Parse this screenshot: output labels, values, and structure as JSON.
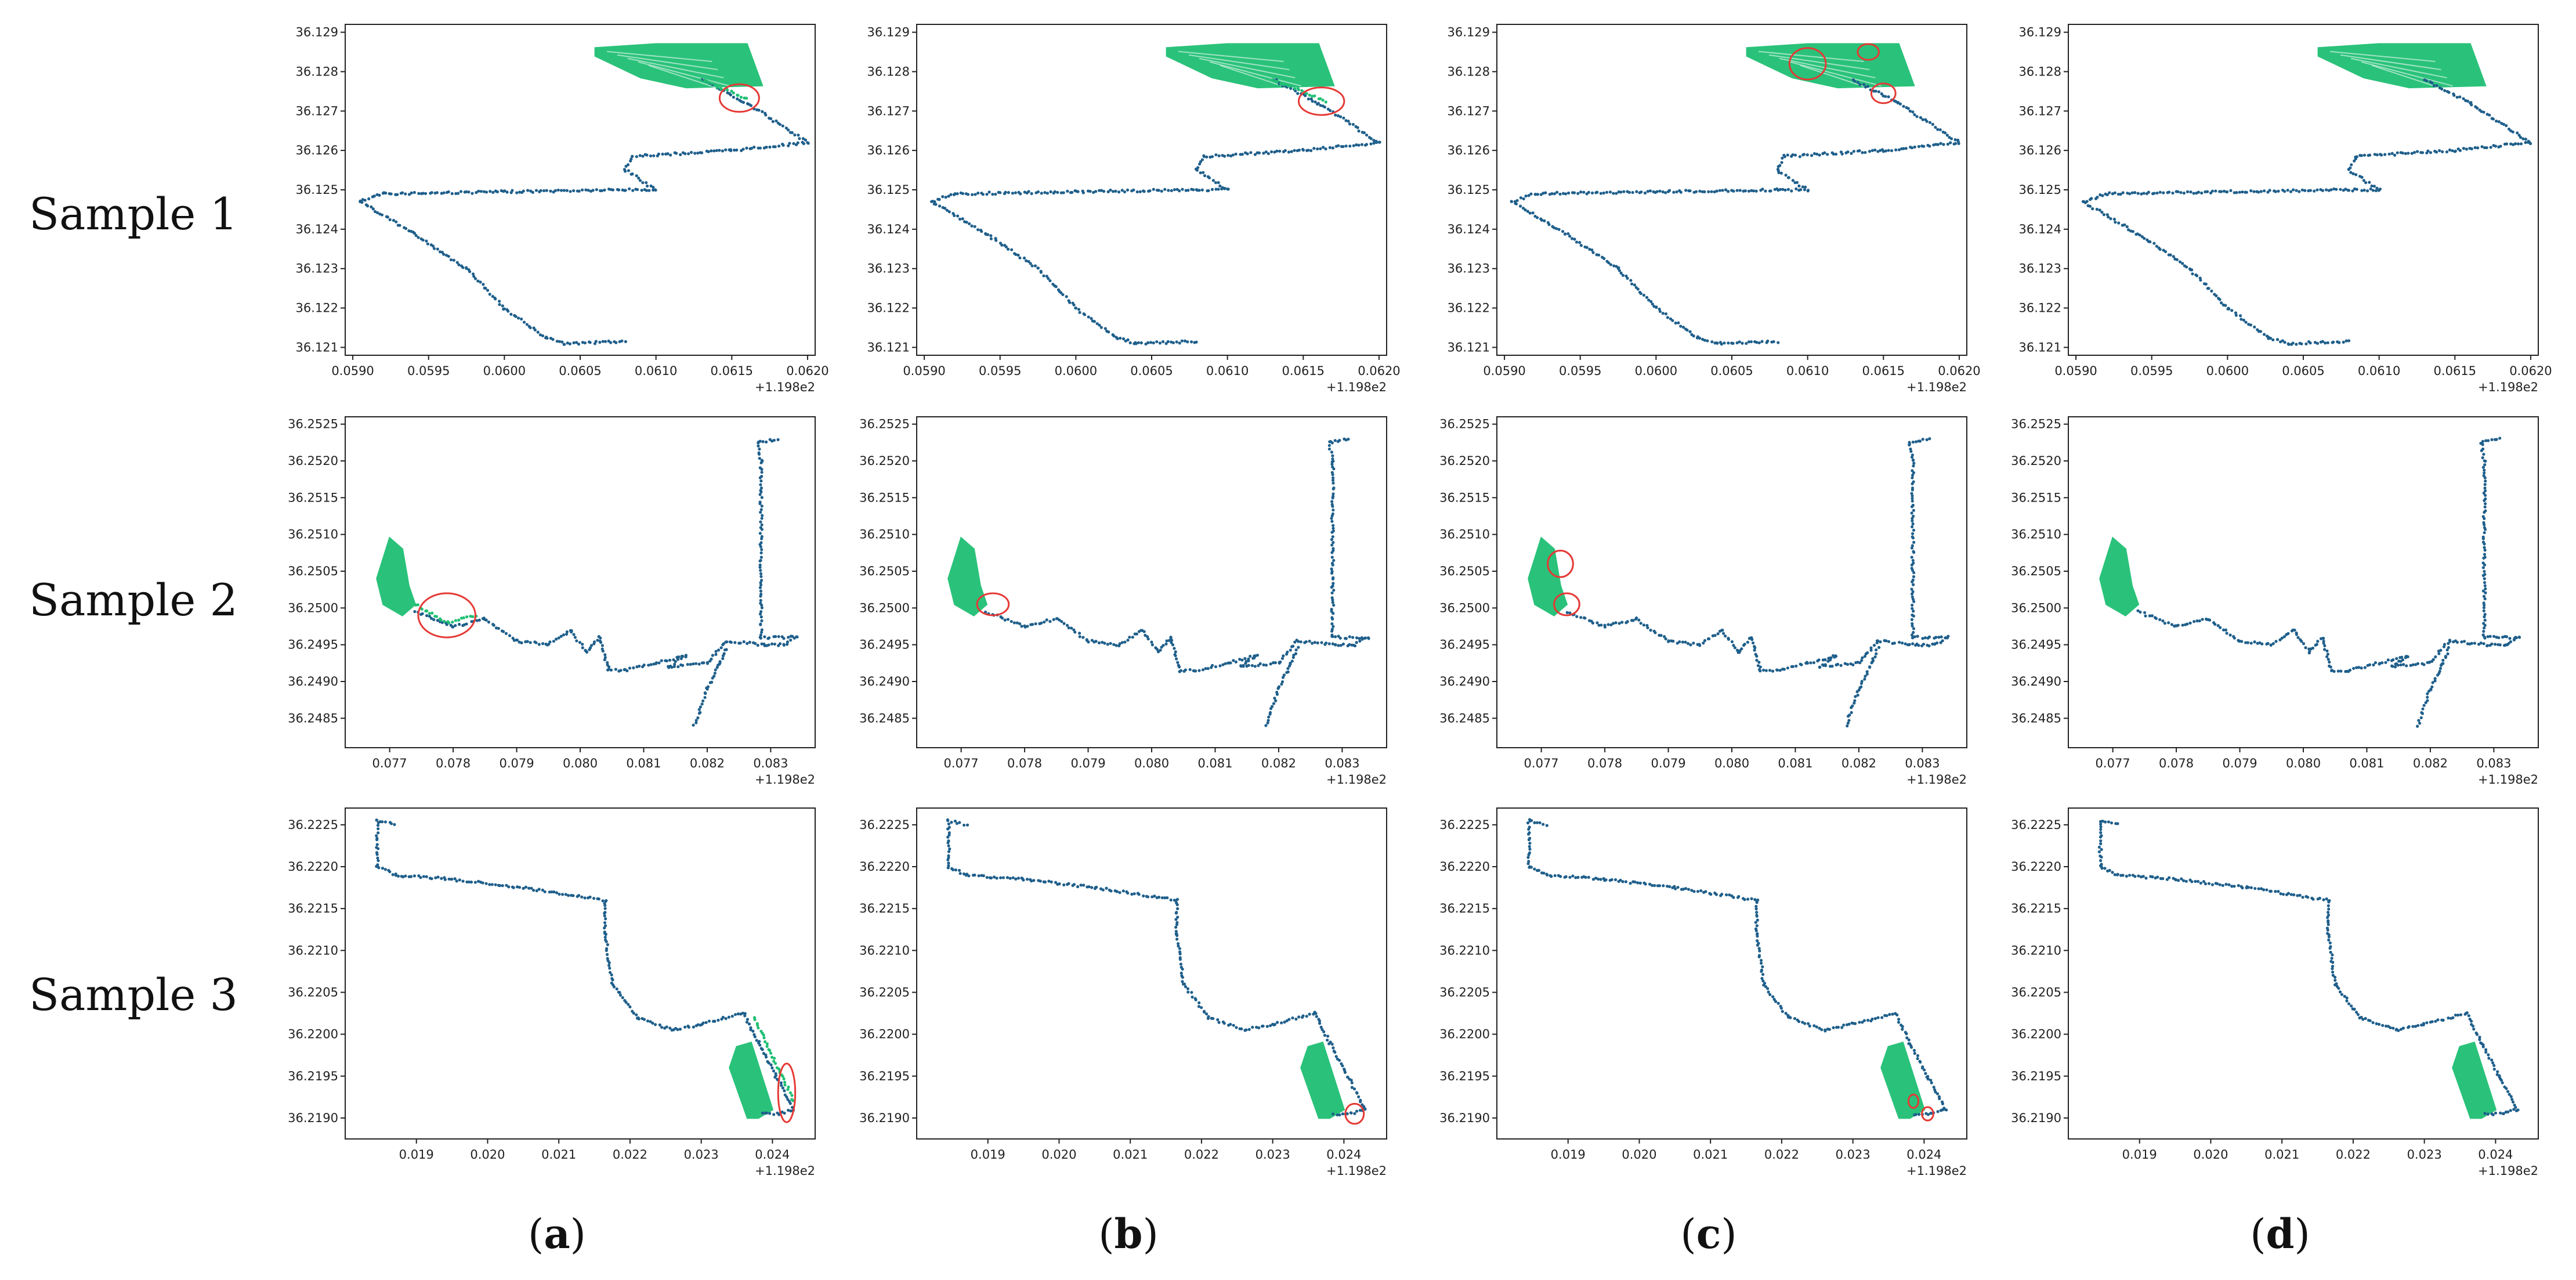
{
  "figure": {
    "row_labels": [
      "Sample 1",
      "Sample 2",
      "Sample 3"
    ],
    "column_labels": [
      "a",
      "b",
      "c",
      "d"
    ],
    "colors": {
      "trajectory": "#1f5f8b",
      "cluster": "#1fbf73",
      "highlight": "#e53935"
    }
  },
  "chart_data": [
    {
      "row": 1,
      "type": "scatter",
      "x_offset_label": "+1.198e2",
      "xlim": [
        0.05895,
        0.06205
      ],
      "ylim": [
        36.1208,
        36.1292
      ],
      "xticks": [
        "0.0590",
        "0.0595",
        "0.0600",
        "0.0605",
        "0.0610",
        "0.0615",
        "0.0620"
      ],
      "xtick_values": [
        0.059,
        0.0595,
        0.06,
        0.0605,
        0.061,
        0.0615,
        0.062
      ],
      "yticks": [
        "36.121",
        "36.122",
        "36.123",
        "36.124",
        "36.125",
        "36.126",
        "36.127",
        "36.128",
        "36.129"
      ],
      "ytick_values": [
        36.121,
        36.122,
        36.123,
        36.124,
        36.125,
        36.126,
        36.127,
        36.128,
        36.129
      ],
      "trajectory": [
        [
          0.0608,
          36.12115
        ],
        [
          0.0604,
          36.1211
        ],
        [
          0.06027,
          36.12125
        ],
        [
          0.06,
          36.122
        ],
        [
          0.05975,
          36.123
        ],
        [
          0.0594,
          36.1239
        ],
        [
          0.05905,
          36.1247
        ],
        [
          0.0592,
          36.1249
        ],
        [
          0.06,
          36.12495
        ],
        [
          0.0608,
          36.125
        ],
        [
          0.061,
          36.125
        ],
        [
          0.0608,
          36.1255
        ],
        [
          0.06085,
          36.12585
        ],
        [
          0.0615,
          36.126
        ],
        [
          0.062,
          36.1262
        ],
        [
          0.0616,
          36.1272
        ],
        [
          0.0613,
          36.1278
        ]
      ],
      "cluster": [
        [
          0.0606,
          36.1286
        ],
        [
          0.061,
          36.1287
        ],
        [
          0.0616,
          36.1287
        ],
        [
          0.0617,
          36.12765
        ],
        [
          0.0612,
          36.1276
        ],
        [
          0.0609,
          36.12785
        ],
        [
          0.0606,
          36.1284
        ]
      ],
      "panels": [
        {
          "label": "a",
          "cluster_extends": [
            [
              0.0613,
              36.1278
            ],
            [
              0.0616,
              36.1273
            ]
          ],
          "circles": [
            {
              "cx": 0.06155,
              "cy": 36.12733,
              "rx": 0.00013,
              "ry": 0.00035
            }
          ]
        },
        {
          "label": "b",
          "cluster_extends": [
            [
              0.0613,
              36.1278
            ],
            [
              0.06165,
              36.12725
            ]
          ],
          "circles": [
            {
              "cx": 0.06162,
              "cy": 36.12725,
              "rx": 0.00015,
              "ry": 0.00035
            }
          ]
        },
        {
          "label": "c",
          "cluster_extends": [],
          "circles": [
            {
              "cx": 0.061,
              "cy": 36.1282,
              "rx": 0.00012,
              "ry": 0.0004
            },
            {
              "cx": 0.0614,
              "cy": 36.1285,
              "rx": 7e-05,
              "ry": 0.0002
            },
            {
              "cx": 0.0615,
              "cy": 36.12745,
              "rx": 8e-05,
              "ry": 0.00025
            }
          ]
        },
        {
          "label": "d",
          "cluster_extends": [],
          "circles": []
        }
      ]
    },
    {
      "row": 2,
      "type": "scatter",
      "x_offset_label": "+1.198e2",
      "xlim": [
        0.0763,
        0.0837
      ],
      "ylim": [
        36.2481,
        36.2526
      ],
      "xticks": [
        "0.077",
        "0.078",
        "0.079",
        "0.080",
        "0.081",
        "0.082",
        "0.083"
      ],
      "xtick_values": [
        0.077,
        0.078,
        0.079,
        0.08,
        0.081,
        0.082,
        0.083
      ],
      "yticks": [
        "36.2485",
        "36.2490",
        "36.2495",
        "36.2500",
        "36.2505",
        "36.2510",
        "36.2515",
        "36.2520",
        "36.2525"
      ],
      "ytick_values": [
        36.2485,
        36.249,
        36.2495,
        36.25,
        36.2505,
        36.251,
        36.2515,
        36.252,
        36.2525
      ],
      "trajectory": [
        [
          0.0774,
          36.24995
        ],
        [
          0.078,
          36.24975
        ],
        [
          0.0785,
          36.24985
        ],
        [
          0.079,
          36.24955
        ],
        [
          0.0795,
          36.2495
        ],
        [
          0.07985,
          36.2497
        ],
        [
          0.0801,
          36.2494
        ],
        [
          0.0803,
          36.2496
        ],
        [
          0.08045,
          36.24915
        ],
        [
          0.0807,
          36.24915
        ],
        [
          0.0812,
          36.24925
        ],
        [
          0.08165,
          36.24935
        ],
        [
          0.0814,
          36.2492
        ],
        [
          0.082,
          36.24925
        ],
        [
          0.0823,
          36.24955
        ],
        [
          0.0829,
          36.2495
        ],
        [
          0.0832,
          36.2495
        ],
        [
          0.0834,
          36.2496
        ],
        [
          0.08285,
          36.2496
        ],
        [
          0.08285,
          36.252
        ],
        [
          0.0828,
          36.25225
        ],
        [
          0.0831,
          36.2523
        ]
      ],
      "trajectory_extra": [
        [
          0.0818,
          36.2484
        ],
        [
          0.082,
          36.2489
        ],
        [
          0.0822,
          36.24925
        ],
        [
          0.0823,
          36.24945
        ]
      ],
      "cluster": [
        [
          0.0768,
          36.2504
        ],
        [
          0.077,
          36.25095
        ],
        [
          0.0772,
          36.2508
        ],
        [
          0.0773,
          36.2503
        ],
        [
          0.0774,
          36.25005
        ],
        [
          0.0772,
          36.2499
        ],
        [
          0.0769,
          36.25005
        ]
      ],
      "panels": [
        {
          "label": "a",
          "green_tail": [
            [
              0.0774,
              36.25005
            ],
            [
              0.0779,
              36.2498
            ],
            [
              0.07835,
              36.2499
            ]
          ],
          "circles": [
            {
              "cx": 0.0779,
              "cy": 36.2499,
              "rx": 0.00045,
              "ry": 0.0003
            }
          ]
        },
        {
          "label": "b",
          "green_tail": [],
          "circles": [
            {
              "cx": 0.0775,
              "cy": 36.25005,
              "rx": 0.00025,
              "ry": 0.00015
            }
          ]
        },
        {
          "label": "c",
          "green_tail": [],
          "circles": [
            {
              "cx": 0.0773,
              "cy": 36.2506,
              "rx": 0.0002,
              "ry": 0.00018
            },
            {
              "cx": 0.0774,
              "cy": 36.25005,
              "rx": 0.0002,
              "ry": 0.00015
            }
          ]
        },
        {
          "label": "d",
          "green_tail": [],
          "circles": []
        }
      ]
    },
    {
      "row": 3,
      "type": "scatter",
      "x_offset_label": "+1.198e2",
      "xlim": [
        0.018,
        0.0246
      ],
      "ylim": [
        36.21875,
        36.2227
      ],
      "xticks": [
        "0.019",
        "0.020",
        "0.021",
        "0.022",
        "0.023",
        "0.024"
      ],
      "xtick_values": [
        0.019,
        0.02,
        0.021,
        0.022,
        0.023,
        0.024
      ],
      "yticks": [
        "36.2190",
        "36.2195",
        "36.2200",
        "36.2205",
        "36.2210",
        "36.2215",
        "36.2220",
        "36.2225"
      ],
      "ytick_values": [
        36.219,
        36.2195,
        36.22,
        36.2205,
        36.221,
        36.2215,
        36.222,
        36.2225
      ],
      "trajectory": [
        [
          0.0187,
          36.2225
        ],
        [
          0.01845,
          36.22255
        ],
        [
          0.01845,
          36.222
        ],
        [
          0.0187,
          36.2219
        ],
        [
          0.0195,
          36.22185
        ],
        [
          0.0205,
          36.22175
        ],
        [
          0.02165,
          36.2216
        ],
        [
          0.02165,
          36.2212
        ],
        [
          0.02175,
          36.2206
        ],
        [
          0.0221,
          36.2202
        ],
        [
          0.0226,
          36.22005
        ],
        [
          0.023,
          36.22012
        ],
        [
          0.0236,
          36.22025
        ],
        [
          0.0238,
          36.2199
        ],
        [
          0.02405,
          36.2195
        ],
        [
          0.0243,
          36.2191
        ],
        [
          0.0241,
          36.21905
        ],
        [
          0.02385,
          36.21905
        ]
      ],
      "cluster": [
        [
          0.0235,
          36.21985
        ],
        [
          0.0237,
          36.2199
        ],
        [
          0.024,
          36.2191
        ],
        [
          0.0238,
          36.219
        ],
        [
          0.02365,
          36.219
        ],
        [
          0.0234,
          36.2196
        ]
      ],
      "panels": [
        {
          "label": "a",
          "green_tail": [
            [
              0.02375,
              36.2202
            ],
            [
              0.0241,
              36.21955
            ],
            [
              0.0243,
              36.2192
            ]
          ],
          "circles": [
            {
              "cx": 0.0242,
              "cy": 36.2193,
              "rx": 0.00012,
              "ry": 0.00035
            }
          ]
        },
        {
          "label": "b",
          "green_tail": [],
          "circles": [
            {
              "cx": 0.02415,
              "cy": 36.21905,
              "rx": 0.00013,
              "ry": 0.00012
            }
          ]
        },
        {
          "label": "c",
          "green_tail": [],
          "circles": [
            {
              "cx": 0.02385,
              "cy": 36.2192,
              "rx": 7e-05,
              "ry": 8e-05
            },
            {
              "cx": 0.02405,
              "cy": 36.21905,
              "rx": 8e-05,
              "ry": 8e-05
            }
          ]
        },
        {
          "label": "d",
          "green_tail": [],
          "circles": []
        }
      ]
    }
  ]
}
